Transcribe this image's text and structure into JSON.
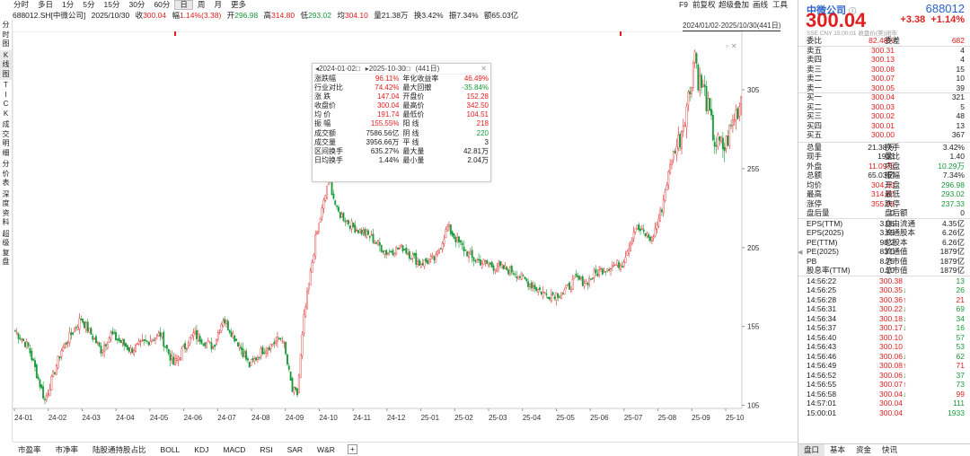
{
  "toolbar": {
    "periods": [
      "分时",
      "多日",
      "1分",
      "5分",
      "15分",
      "30分",
      "60分",
      "日",
      "周",
      "月",
      "更多"
    ],
    "active": "日",
    "right_items": [
      "F9",
      "前复权",
      "超级叠加",
      "画线",
      "工具"
    ]
  },
  "info": {
    "symbol": "688012.SH[中微公司]",
    "date": "2025/10/30",
    "close_label": "收",
    "close": "300.04",
    "range_label": "幅",
    "range": "1.14%(3.38)",
    "open_label": "开",
    "open": "296.98",
    "high_label": "高",
    "high": "314.80",
    "low_label": "低",
    "low": "293.02",
    "avg_label": "均",
    "avg": "304.10",
    "vol_label": "量",
    "vol": "21.38万",
    "turn_label": "换",
    "turn": "3.42%",
    "amp_label": "振",
    "amp": "7.34%",
    "amt_label": "额",
    "amt": "65.03亿"
  },
  "left_tabs": [
    "分时图",
    "K线图",
    "TICK",
    "成交明细",
    "分价表",
    "深度资料",
    "超级复盘"
  ],
  "left_active": "K线图",
  "range_box": "2024/01/02-2025/10/30(441日)",
  "popup": {
    "start": "2024-01-02",
    "end": "2025-10-30",
    "days": "(441日)",
    "rows": [
      [
        "涨跌幅",
        "96.11%",
        "red",
        "年化收益率",
        "46.49%",
        "red"
      ],
      [
        "行业对比",
        "74.42%",
        "red",
        "最大回撤",
        "-35.84%",
        "green"
      ],
      [
        "涨  跌",
        "147.04",
        "red",
        "开盘价",
        "152.28",
        "red"
      ],
      [
        "收盘价",
        "300.04",
        "red",
        "最高价",
        "342.50",
        "red"
      ],
      [
        "均  价",
        "191.74",
        "red",
        "最低价",
        "104.51",
        "red"
      ],
      [
        "振  幅",
        "155.55%",
        "red",
        "阳  线",
        "218",
        "red"
      ],
      [
        "成交额",
        "7586.56亿",
        "",
        "阴  线",
        "220",
        "green"
      ],
      [
        "成交量",
        "3956.66万",
        "",
        "平  线",
        "3",
        ""
      ],
      [
        "区间换手",
        "635.27%",
        "",
        "最大量",
        "42.81万",
        ""
      ],
      [
        "日均换手",
        "1.44%",
        "",
        "最小量",
        "2.04万",
        ""
      ]
    ]
  },
  "chart_data": {
    "type": "candlestick",
    "y_ticks": [
      105,
      155,
      205,
      255,
      305
    ],
    "ylim": [
      103,
      342
    ],
    "x_ticks": [
      "24-01",
      "24-02",
      "24-03",
      "24-04",
      "24-05",
      "24-06",
      "24-07",
      "24-08",
      "24-09",
      "24-10",
      "24-11",
      "24-12",
      "25-01",
      "25-02",
      "25-03",
      "25-04",
      "25-05",
      "25-06",
      "25-07",
      "25-08",
      "25-09",
      "25-10"
    ],
    "key_points": [
      [
        0,
        152
      ],
      [
        8,
        142
      ],
      [
        18,
        108
      ],
      [
        28,
        140
      ],
      [
        40,
        160
      ],
      [
        52,
        140
      ],
      [
        58,
        150
      ],
      [
        70,
        140
      ],
      [
        88,
        150
      ],
      [
        96,
        131
      ],
      [
        108,
        150
      ],
      [
        120,
        142
      ],
      [
        126,
        160
      ],
      [
        136,
        143
      ],
      [
        142,
        130
      ],
      [
        150,
        140
      ],
      [
        162,
        148
      ],
      [
        168,
        114
      ],
      [
        171,
        112
      ],
      [
        175,
        160
      ],
      [
        182,
        210
      ],
      [
        188,
        238
      ],
      [
        190,
        250
      ],
      [
        195,
        228
      ],
      [
        205,
        218
      ],
      [
        215,
        212
      ],
      [
        225,
        202
      ],
      [
        235,
        205
      ],
      [
        245,
        195
      ],
      [
        255,
        198
      ],
      [
        262,
        218
      ],
      [
        268,
        209
      ],
      [
        277,
        198
      ],
      [
        290,
        193
      ],
      [
        302,
        190
      ],
      [
        312,
        182
      ],
      [
        322,
        175
      ],
      [
        332,
        176
      ],
      [
        340,
        185
      ],
      [
        346,
        183
      ],
      [
        354,
        190
      ],
      [
        360,
        193
      ],
      [
        368,
        195
      ],
      [
        376,
        218
      ],
      [
        386,
        210
      ],
      [
        392,
        230
      ],
      [
        398,
        262
      ],
      [
        403,
        275
      ],
      [
        406,
        290
      ],
      [
        409,
        305
      ],
      [
        412,
        330
      ],
      [
        414,
        312
      ],
      [
        418,
        303
      ],
      [
        424,
        272
      ],
      [
        430,
        268
      ],
      [
        436,
        288
      ],
      [
        441,
        300
      ]
    ],
    "colors": {
      "up": "#e02020",
      "down": "#1a9a3a"
    },
    "grid": false
  },
  "bottom_tabs": [
    "市盈率",
    "市净率",
    "陆股通持股占比",
    "BOLL",
    "KDJ",
    "MACD",
    "RSI",
    "SAR",
    "W&R"
  ],
  "quote": {
    "name": "中微公司",
    "code": "688012",
    "price": "300.04",
    "change": "+3.38",
    "pct": "+1.14%",
    "sub": "SSE  CNY  15:00:01  收盘价(美)闭市"
  },
  "book": [
    [
      "委比",
      "82.48%",
      "red",
      "委差",
      "682",
      "red"
    ],
    [
      "卖五",
      "300.31",
      "red",
      "",
      "4",
      ""
    ],
    [
      "卖四",
      "300.13",
      "red",
      "",
      "4",
      ""
    ],
    [
      "卖三",
      "300.08",
      "red",
      "",
      "15",
      ""
    ],
    [
      "卖二",
      "300.07",
      "red",
      "",
      "10",
      ""
    ],
    [
      "卖一",
      "300.05",
      "red",
      "",
      "39",
      ""
    ],
    [
      "买一",
      "300.04",
      "red",
      "",
      "321",
      ""
    ],
    [
      "买二",
      "300.03",
      "red",
      "",
      "5",
      ""
    ],
    [
      "买三",
      "300.02",
      "red",
      "",
      "48",
      ""
    ],
    [
      "买四",
      "300.01",
      "red",
      "",
      "13",
      ""
    ],
    [
      "买五",
      "300.00",
      "red",
      "",
      "367",
      ""
    ]
  ],
  "stats": [
    [
      "总量",
      "21.38万",
      "",
      "换手",
      "3.42%",
      ""
    ],
    [
      "现手",
      "1933",
      "",
      "量比",
      "1.40",
      ""
    ],
    [
      "外盘",
      "11.09万",
      "red",
      "内盘",
      "10.29万",
      "green"
    ],
    [
      "总额",
      "65.03亿",
      "",
      "振幅",
      "7.34%",
      ""
    ],
    [
      "均价",
      "304.10",
      "red",
      "开盘",
      "296.98",
      "green"
    ],
    [
      "最高",
      "314.80",
      "red",
      "最低",
      "293.02",
      "green"
    ],
    [
      "涨停",
      "355.99",
      "red",
      "跌停",
      "237.33",
      "green"
    ],
    [
      "盘后量",
      "0",
      "",
      "盘后额",
      "0",
      ""
    ]
  ],
  "fund": [
    [
      "EPS(TTM)",
      "3.06",
      "自由流通",
      "4.35亿"
    ],
    [
      "EPS(2025)",
      "3.59",
      "流通股本",
      "6.26亿"
    ],
    [
      "PE(TTM)",
      "98.2",
      "总股本",
      "6.26亿"
    ],
    [
      "PE(2025)",
      "83.0",
      "流通值",
      "1879亿"
    ],
    [
      "PB",
      "8.75",
      "总市值",
      "1879亿"
    ],
    [
      "股息率(TTM)",
      "0.10",
      "总市值",
      "1879亿"
    ]
  ],
  "trades": [
    [
      "14:56:22",
      "300.38",
      "",
      "13",
      "green"
    ],
    [
      "14:56:25",
      "300.35",
      "↓",
      "26",
      "green"
    ],
    [
      "14:56:28",
      "300.36",
      "↑",
      "21",
      "red"
    ],
    [
      "14:56:31",
      "300.22",
      "↓",
      "69",
      "green"
    ],
    [
      "14:56:34",
      "300.18",
      "↓",
      "34",
      "green"
    ],
    [
      "14:56:37",
      "300.17",
      "↓",
      "16",
      "green"
    ],
    [
      "14:56:40",
      "300.10",
      "",
      "57",
      "green"
    ],
    [
      "14:56:43",
      "300.10",
      "",
      "53",
      "green"
    ],
    [
      "14:56:46",
      "300.06",
      "↓",
      "62",
      "green"
    ],
    [
      "14:56:49",
      "300.08",
      "↑",
      "71",
      "red"
    ],
    [
      "14:56:52",
      "300.06",
      "↓",
      "37",
      "green"
    ],
    [
      "14:56:55",
      "300.07",
      "↑",
      "73",
      "green"
    ],
    [
      "14:56:58",
      "300.04",
      "↓",
      "99",
      "red"
    ],
    [
      "14:57:01",
      "300.04",
      "",
      "111",
      "green"
    ],
    [
      "15:00:01",
      "300.04",
      "",
      "1933",
      "green"
    ]
  ],
  "right_tabs": [
    "盘口",
    "基本",
    "资金",
    "快讯"
  ]
}
